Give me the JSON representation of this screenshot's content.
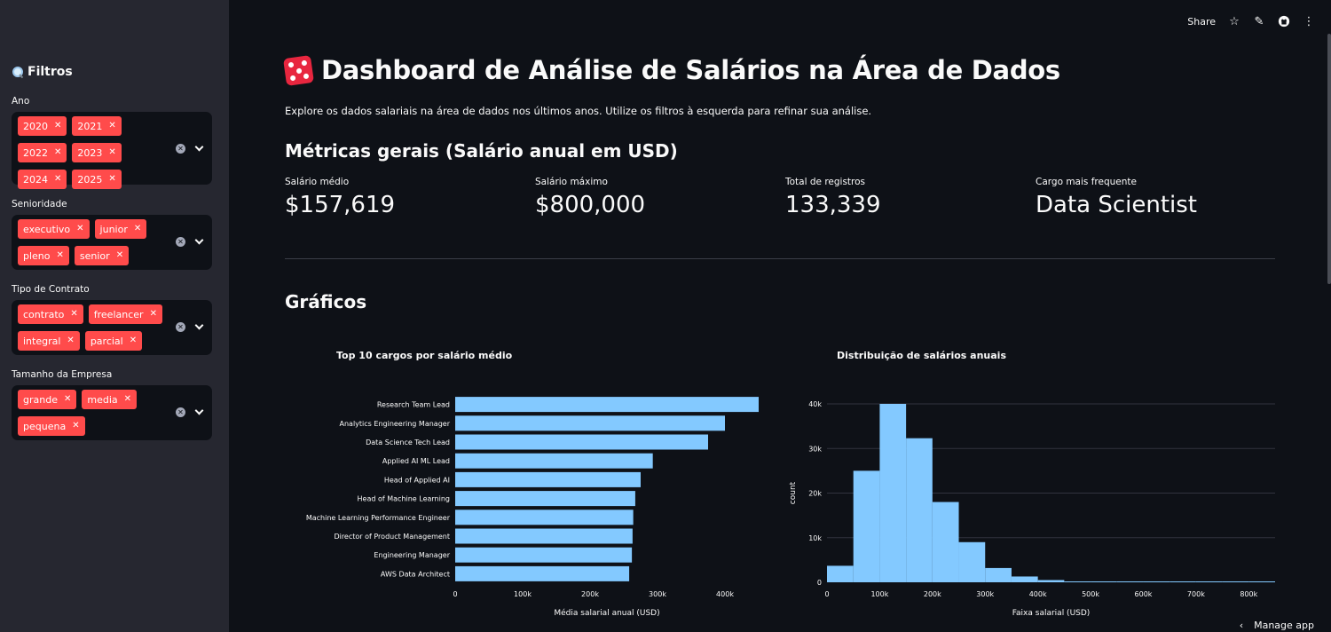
{
  "sidebar": {
    "title": "Filtros",
    "filters": [
      {
        "label": "Ano",
        "tags": [
          "2020",
          "2021",
          "2022",
          "2023",
          "2024",
          "2025"
        ]
      },
      {
        "label": "Senioridade",
        "tags": [
          "executivo",
          "junior",
          "pleno",
          "senior"
        ]
      },
      {
        "label": "Tipo de Contrato",
        "tags": [
          "contrato",
          "freelancer",
          "integral",
          "parcial"
        ]
      },
      {
        "label": "Tamanho da Empresa",
        "tags": [
          "grande",
          "media",
          "pequena"
        ]
      }
    ]
  },
  "toolbar": {
    "share_label": "Share"
  },
  "header": {
    "title": "Dashboard de Análise de Salários na Área de Dados",
    "subtitle": "Explore os dados salariais na área de dados nos últimos anos. Utilize os filtros à esquerda para refinar sua análise."
  },
  "metrics": {
    "heading": "Métricas gerais (Salário anual em USD)",
    "items": [
      {
        "label": "Salário médio",
        "value": "$157,619"
      },
      {
        "label": "Salário máximo",
        "value": "$800,000"
      },
      {
        "label": "Total de registros",
        "value": "133,339"
      },
      {
        "label": "Cargo mais frequente",
        "value": "Data Scientist"
      }
    ]
  },
  "charts_heading": "Gráficos",
  "chart_data": [
    {
      "type": "bar",
      "orientation": "horizontal",
      "title": "Top 10 cargos por salário médio",
      "xlabel": "Média salarial anual (USD)",
      "ylabel": "",
      "categories": [
        "Research Team Lead",
        "Analytics Engineering Manager",
        "Data Science Tech Lead",
        "Applied AI ML Lead",
        "Head of Applied AI",
        "Head of Machine Learning",
        "Machine Learning Performance Engineer",
        "Director of Product Management",
        "Engineering Manager",
        "AWS Data Architect"
      ],
      "values": [
        450000,
        400000,
        375000,
        293000,
        275000,
        267000,
        264000,
        263000,
        262000,
        258000
      ],
      "xlim": [
        0,
        450000
      ],
      "xticks": [
        0,
        100000,
        200000,
        300000,
        400000
      ],
      "xtick_labels": [
        "0",
        "100k",
        "200k",
        "300k",
        "400k"
      ],
      "color": "#83c9ff"
    },
    {
      "type": "bar",
      "subtype": "histogram",
      "title": "Distribuição de salários anuais",
      "xlabel": "Faixa salarial (USD)",
      "ylabel": "count",
      "bin_width": 50000,
      "bin_starts": [
        0,
        50000,
        100000,
        150000,
        200000,
        250000,
        300000,
        350000,
        400000,
        450000,
        500000,
        550000,
        600000,
        650000,
        700000,
        750000,
        800000
      ],
      "values": [
        3700,
        25000,
        40000,
        32300,
        18000,
        9000,
        3200,
        1300,
        500,
        200,
        100,
        60,
        40,
        30,
        20,
        15,
        10
      ],
      "xlim": [
        0,
        850000
      ],
      "ylim": [
        0,
        40000
      ],
      "xticks": [
        0,
        100000,
        200000,
        300000,
        400000,
        500000,
        600000,
        700000,
        800000
      ],
      "xtick_labels": [
        "0",
        "100k",
        "200k",
        "300k",
        "400k",
        "500k",
        "600k",
        "700k",
        "800k"
      ],
      "yticks": [
        0,
        10000,
        20000,
        30000,
        40000
      ],
      "ytick_labels": [
        "0",
        "10k",
        "20k",
        "30k",
        "40k"
      ],
      "color": "#83c9ff"
    }
  ],
  "footer": {
    "manage_label": "Manage app"
  }
}
